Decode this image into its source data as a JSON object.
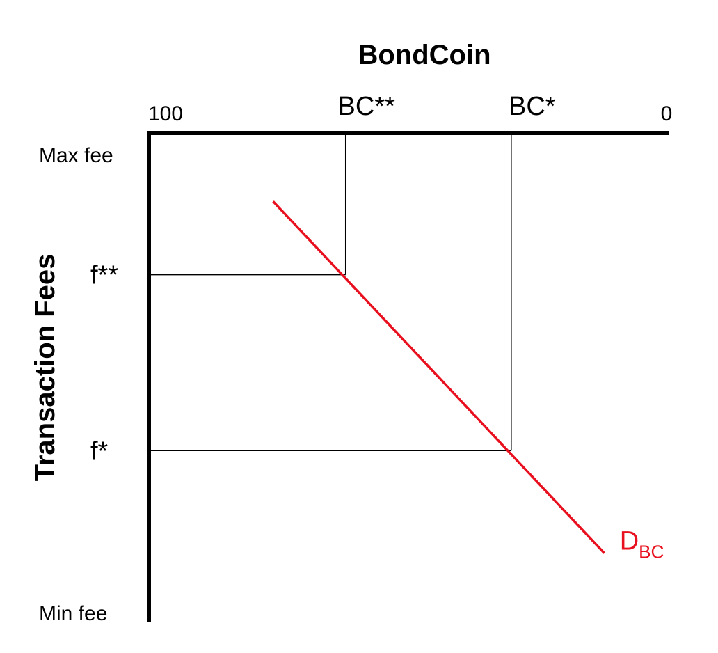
{
  "chart_data": {
    "type": "line",
    "title": "BondCoin",
    "ylabel": "Transaction Fees",
    "colors": {
      "axis": "#000000",
      "demand": "#e8101e",
      "guide": "#000000"
    },
    "x_axis": {
      "position": "top",
      "reversed": true,
      "range": [
        100,
        0
      ],
      "end_labels": {
        "left": "100",
        "right": "0"
      },
      "marked_ticks": [
        {
          "label": "BC**",
          "value": 62
        },
        {
          "label": "BC*",
          "value": 30
        }
      ]
    },
    "y_axis": {
      "top_label": "Max fee",
      "bottom_label": "Min fee",
      "range": [
        0,
        100
      ],
      "marked_ticks": [
        {
          "label": "f**",
          "value": 71
        },
        {
          "label": "f*",
          "value": 35
        }
      ]
    },
    "grid": false,
    "series": [
      {
        "name_main": "D",
        "name_sub": "BC",
        "type": "line",
        "points": [
          {
            "x": 76,
            "y": 86
          },
          {
            "x": 12,
            "y": 14
          }
        ]
      }
    ],
    "guides": [
      {
        "from_tick_x": "BC**",
        "to_tick_y": "f**"
      },
      {
        "from_tick_x": "BC*",
        "to_tick_y": "f*"
      }
    ]
  }
}
